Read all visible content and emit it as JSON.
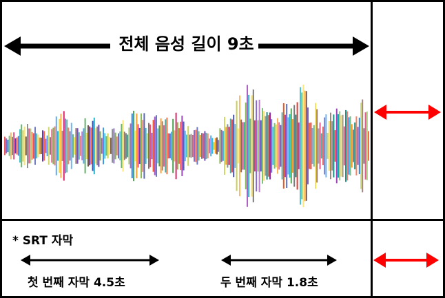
{
  "diagram": {
    "total_audio_label": "전체 음성 길이 9초",
    "subtitle_section_label": "* SRT 자막",
    "subtitles": [
      {
        "label": "첫 번째 자막 4.5초"
      },
      {
        "label": "두 번째 자막 1.8초"
      }
    ],
    "colors": {
      "border": "#000000",
      "arrow_black": "#000000",
      "arrow_red": "#ff0000"
    },
    "waveform_palette": [
      "#e53935",
      "#8e24aa",
      "#3949ab",
      "#1e88e5",
      "#00acc1",
      "#43a047",
      "#c0ca33",
      "#fdd835",
      "#fb8c00",
      "#6d4c41",
      "#757575",
      "#d81b60",
      "#5e35b1",
      "#00897b",
      "#7cb342",
      "#f4511e"
    ]
  }
}
